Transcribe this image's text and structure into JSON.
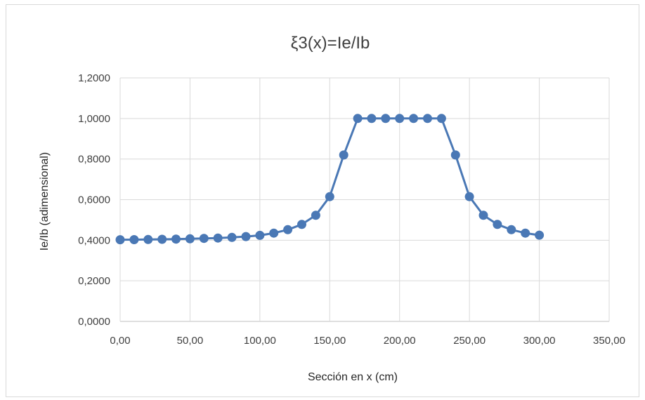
{
  "chart_data": {
    "type": "scatter",
    "title": "ξ3(x)=Ie/Ib",
    "xlabel": "Sección en x (cm)",
    "ylabel": "Ie/Ib (adimensional)",
    "xlim": [
      0,
      350
    ],
    "ylim": [
      0,
      1.2
    ],
    "x_ticks": [
      "0,00",
      "50,00",
      "100,00",
      "150,00",
      "200,00",
      "250,00",
      "300,00",
      "350,00"
    ],
    "y_ticks": [
      "0,0000",
      "0,2000",
      "0,4000",
      "0,6000",
      "0,8000",
      "1,0000",
      "1,2000"
    ],
    "x_tick_values": [
      0,
      50,
      100,
      150,
      200,
      250,
      300,
      350
    ],
    "y_tick_values": [
      0,
      0.2,
      0.4,
      0.6,
      0.8,
      1.0,
      1.2
    ],
    "grid": true,
    "legend": "none",
    "line": true,
    "marker": "circle",
    "color": "#4a78b5",
    "x": [
      0,
      10,
      20,
      30,
      40,
      50,
      60,
      70,
      80,
      90,
      100,
      110,
      120,
      130,
      140,
      150,
      160,
      170,
      180,
      190,
      200,
      210,
      220,
      230,
      240,
      250,
      260,
      270,
      280,
      290,
      300
    ],
    "y": [
      0.4025,
      0.403,
      0.4035,
      0.4045,
      0.4055,
      0.407,
      0.409,
      0.411,
      0.414,
      0.418,
      0.424,
      0.435,
      0.452,
      0.478,
      0.523,
      0.615,
      0.82,
      1.0,
      1.0,
      1.0,
      1.0,
      1.0,
      1.0,
      1.0,
      0.82,
      0.615,
      0.523,
      0.478,
      0.452,
      0.435,
      0.425
    ]
  }
}
